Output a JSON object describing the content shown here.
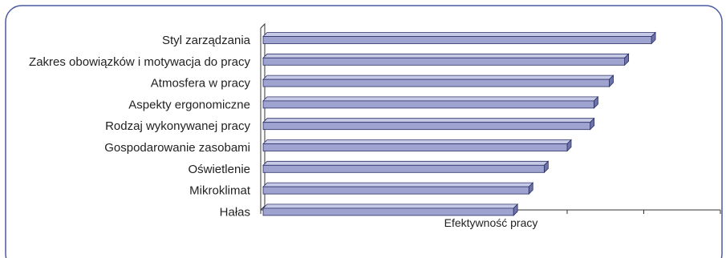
{
  "chart_data": {
    "type": "bar",
    "orientation": "horizontal",
    "style": "3d",
    "categories": [
      "Styl zarządzania",
      "Zakres obowiązków i motywacja do pracy",
      "Atmosfera w pracy",
      "Aspekty ergonomiczne",
      "Rodzaj wykonywanej pracy",
      "Gospodarowanie zasobami",
      "Oświetlenie",
      "Mikroklimat",
      "Hałas"
    ],
    "values": [
      5.1,
      4.75,
      4.55,
      4.35,
      4.3,
      4.0,
      3.7,
      3.5,
      3.3
    ],
    "xlabel": "Efektywność pracy",
    "xlim": [
      0,
      6
    ],
    "xticks": 6,
    "tick_labels_visible": false,
    "grid": false,
    "legend": "none",
    "colors": {
      "bar_face": "#9fa3cf",
      "bar_top": "#c7cae6",
      "bar_side": "#6d72a8",
      "bar_stroke": "#2a2f66",
      "frame_border": "#4a5aa0",
      "axis": "#333333"
    }
  }
}
